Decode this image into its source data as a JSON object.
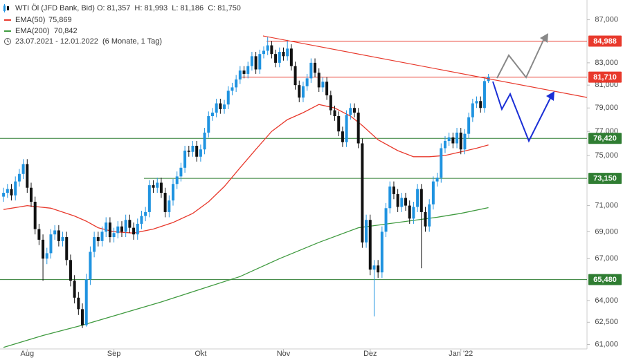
{
  "chart_data": {
    "type": "candlestick",
    "title": "WTI Öl (JFD Bank, Bid)",
    "ohlc_label": "O: 81,357  H: 81,993  L: 81,186  C: 81,750",
    "period": "23.07.2021 - 12.01.2022",
    "period_note": "(6 Monate, 1 Tag)",
    "up_color": "#1f93e0",
    "down_color": "#111111",
    "log_scale": true,
    "xlim": [
      -0.9,
      148
    ],
    "xticks": [
      {
        "value": 6,
        "label": "Aug"
      },
      {
        "value": 28,
        "label": "Sep"
      },
      {
        "value": 50,
        "label": "Okt"
      },
      {
        "value": 71,
        "label": "Nov"
      },
      {
        "value": 93,
        "label": "Dez"
      },
      {
        "value": 116,
        "label": "Jan '22"
      }
    ],
    "ylim": [
      60700,
      88900
    ],
    "yticks": [
      {
        "value": 87000,
        "label": "87,000"
      },
      {
        "value": 83000,
        "label": "83,000"
      },
      {
        "value": 81000,
        "label": "81,000"
      },
      {
        "value": 79000,
        "label": "79,000"
      },
      {
        "value": 77000,
        "label": "77,000"
      },
      {
        "value": 75000,
        "label": "75,000"
      },
      {
        "value": 71000,
        "label": "71,000"
      },
      {
        "value": 69000,
        "label": "69,000"
      },
      {
        "value": 67000,
        "label": "67,000"
      },
      {
        "value": 64000,
        "label": "64,000"
      },
      {
        "value": 62500,
        "label": "62,500"
      },
      {
        "value": 61000,
        "label": "61,000"
      }
    ],
    "open": [
      71700,
      72000,
      72300,
      71800,
      72900,
      73500,
      74300,
      72400,
      71300,
      69200,
      68400,
      67000,
      67400,
      68800,
      69100,
      68300,
      68600,
      66900,
      65400,
      64200,
      63400,
      62300,
      65500,
      67500,
      68600,
      68300,
      69000,
      69700,
      68600,
      68900,
      69400,
      69000,
      69900,
      69300,
      68800,
      69600,
      70200,
      70500,
      72600,
      72400,
      72800,
      72000,
      70500,
      71400,
      72700,
      73300,
      74000,
      75400,
      75300,
      75800,
      74900,
      75500,
      76900,
      78300,
      78600,
      79400,
      78900,
      79300,
      80500,
      80800,
      81500,
      82300,
      82000,
      82700,
      83600,
      82400,
      83800,
      84100,
      84600,
      83800,
      83000,
      84000,
      83600,
      84300,
      82700,
      81000,
      79900,
      80900,
      81600,
      83000,
      82100,
      80800,
      81300,
      80100,
      78800,
      78300,
      77000,
      76100,
      78400,
      79000,
      78600,
      76000,
      68200,
      69900,
      66200,
      66500,
      66000,
      69000,
      70800,
      72500,
      71900,
      70900,
      71600,
      71000,
      70000,
      70900,
      72300,
      70500,
      69400,
      71100,
      72900,
      73200,
      75600,
      76200,
      76500,
      76000,
      76900,
      75500,
      76800,
      78200,
      79400,
      79600,
      79000,
      81357
    ],
    "high": [
      72400,
      72700,
      72700,
      73300,
      73900,
      74700,
      74700,
      72800,
      71700,
      69600,
      68800,
      67800,
      69200,
      69500,
      69500,
      69000,
      69000,
      67300,
      65800,
      64600,
      63800,
      65900,
      67900,
      69000,
      69000,
      69400,
      70100,
      70100,
      69300,
      69800,
      69800,
      70300,
      70300,
      69700,
      70000,
      70600,
      70900,
      73000,
      73000,
      73200,
      73200,
      72400,
      71800,
      73100,
      73700,
      74400,
      75800,
      75800,
      76200,
      76200,
      75900,
      77300,
      78700,
      79000,
      79800,
      79800,
      79700,
      80900,
      81200,
      81900,
      82700,
      82700,
      83100,
      84000,
      84000,
      84200,
      84500,
      85400,
      85000,
      84200,
      84400,
      84400,
      85100,
      84700,
      83100,
      81400,
      81300,
      82000,
      83400,
      83400,
      82500,
      81700,
      81700,
      80500,
      79200,
      78700,
      77400,
      78800,
      79400,
      79400,
      79000,
      76400,
      70300,
      70300,
      66900,
      66900,
      69400,
      71200,
      72900,
      72900,
      72300,
      72000,
      72000,
      71400,
      71300,
      72700,
      72700,
      70900,
      71500,
      73300,
      73600,
      76000,
      76600,
      76900,
      76900,
      77300,
      77300,
      77200,
      78600,
      79800,
      80000,
      80000,
      81700,
      81993
    ],
    "low": [
      71300,
      71600,
      71400,
      71400,
      72500,
      73100,
      72000,
      70900,
      68800,
      68000,
      65400,
      66600,
      67000,
      68400,
      67900,
      67900,
      66500,
      65000,
      63800,
      63000,
      62100,
      62200,
      65100,
      67100,
      67900,
      67900,
      68600,
      68200,
      68200,
      68500,
      68600,
      68600,
      68900,
      68400,
      68400,
      69200,
      69800,
      70100,
      72000,
      72000,
      71600,
      70100,
      70100,
      71000,
      72300,
      72900,
      73600,
      74900,
      74900,
      74500,
      74500,
      75100,
      76500,
      77900,
      78200,
      78500,
      78500,
      78900,
      80100,
      80400,
      81100,
      81600,
      81600,
      82300,
      82000,
      82000,
      83400,
      83700,
      83400,
      82600,
      82600,
      83200,
      83200,
      82300,
      80600,
      79500,
      79500,
      80500,
      81200,
      81700,
      80400,
      80400,
      79700,
      78400,
      77900,
      76600,
      75700,
      75700,
      78000,
      78200,
      75600,
      67800,
      67800,
      65800,
      62900,
      65600,
      65600,
      68600,
      70400,
      71500,
      70500,
      70500,
      70600,
      69600,
      69600,
      70500,
      66300,
      69000,
      69000,
      70700,
      72500,
      72800,
      75200,
      75800,
      75600,
      75600,
      75100,
      75100,
      76400,
      77800,
      79000,
      78600,
      78600,
      81186
    ],
    "close": [
      72000,
      72300,
      71800,
      72900,
      73500,
      74300,
      72400,
      71300,
      69200,
      68400,
      67000,
      67400,
      68800,
      69100,
      68300,
      68600,
      66900,
      65400,
      64200,
      63400,
      62300,
      65500,
      67500,
      68600,
      68300,
      69000,
      69700,
      68600,
      68900,
      69400,
      69000,
      69900,
      69300,
      68800,
      69600,
      70200,
      70500,
      72600,
      72400,
      72800,
      72000,
      70500,
      71400,
      72700,
      73300,
      74000,
      75400,
      75300,
      75800,
      74900,
      75500,
      76900,
      78300,
      78600,
      79400,
      78900,
      79300,
      80500,
      80800,
      81500,
      82300,
      82000,
      82700,
      83600,
      82400,
      83800,
      84100,
      84600,
      83800,
      83000,
      84000,
      83600,
      84300,
      82700,
      81000,
      79900,
      80900,
      81600,
      83000,
      82100,
      80800,
      81300,
      80100,
      78800,
      78300,
      77000,
      76100,
      78400,
      79000,
      78600,
      76000,
      68200,
      69900,
      66200,
      66500,
      66000,
      69000,
      70800,
      72500,
      71900,
      70900,
      71600,
      71000,
      70000,
      70900,
      72300,
      70500,
      69400,
      71100,
      72900,
      73200,
      75600,
      76200,
      76500,
      76000,
      76900,
      75500,
      76800,
      78200,
      79400,
      79600,
      79000,
      81357,
      81750
    ],
    "series": [
      {
        "name": "EMA(50)",
        "last_label": "75,869",
        "color": "#e8392c",
        "x": [
          0,
          6,
          12,
          18,
          21,
          24,
          28,
          33,
          38,
          43,
          48,
          52,
          56,
          60,
          64,
          68,
          72,
          76,
          80,
          84,
          88,
          91,
          95,
          100,
          104,
          108,
          112,
          116,
          120,
          123
        ],
        "values": [
          70700,
          71000,
          70800,
          70200,
          69800,
          69300,
          69000,
          68900,
          69200,
          69700,
          70400,
          71300,
          72500,
          74000,
          75500,
          77000,
          78000,
          78600,
          79300,
          79000,
          78300,
          77500,
          76300,
          75400,
          74900,
          74900,
          75000,
          75300,
          75600,
          75869
        ]
      },
      {
        "name": "EMA(200)",
        "last_label": "70,842",
        "color": "#3f9a3f",
        "x": [
          0,
          10,
          20,
          30,
          40,
          50,
          60,
          70,
          80,
          90,
          100,
          110,
          116,
          123
        ],
        "values": [
          60800,
          61600,
          62300,
          63100,
          63900,
          64800,
          65700,
          67000,
          68200,
          69300,
          69700,
          70100,
          70400,
          70842
        ]
      }
    ],
    "levels": [
      {
        "value": 84988,
        "label": "84,988",
        "color": "#e8392c"
      },
      {
        "value": 81710,
        "label": "81,710",
        "color": "#e8392c"
      },
      {
        "value": 76420,
        "label": "76,420",
        "color": "#2f7d32"
      },
      {
        "value": 73150,
        "label": "73,150",
        "color": "#2f7d32"
      },
      {
        "value": 65480,
        "label": "65,480",
        "color": "#2f7d32"
      }
    ]
  }
}
